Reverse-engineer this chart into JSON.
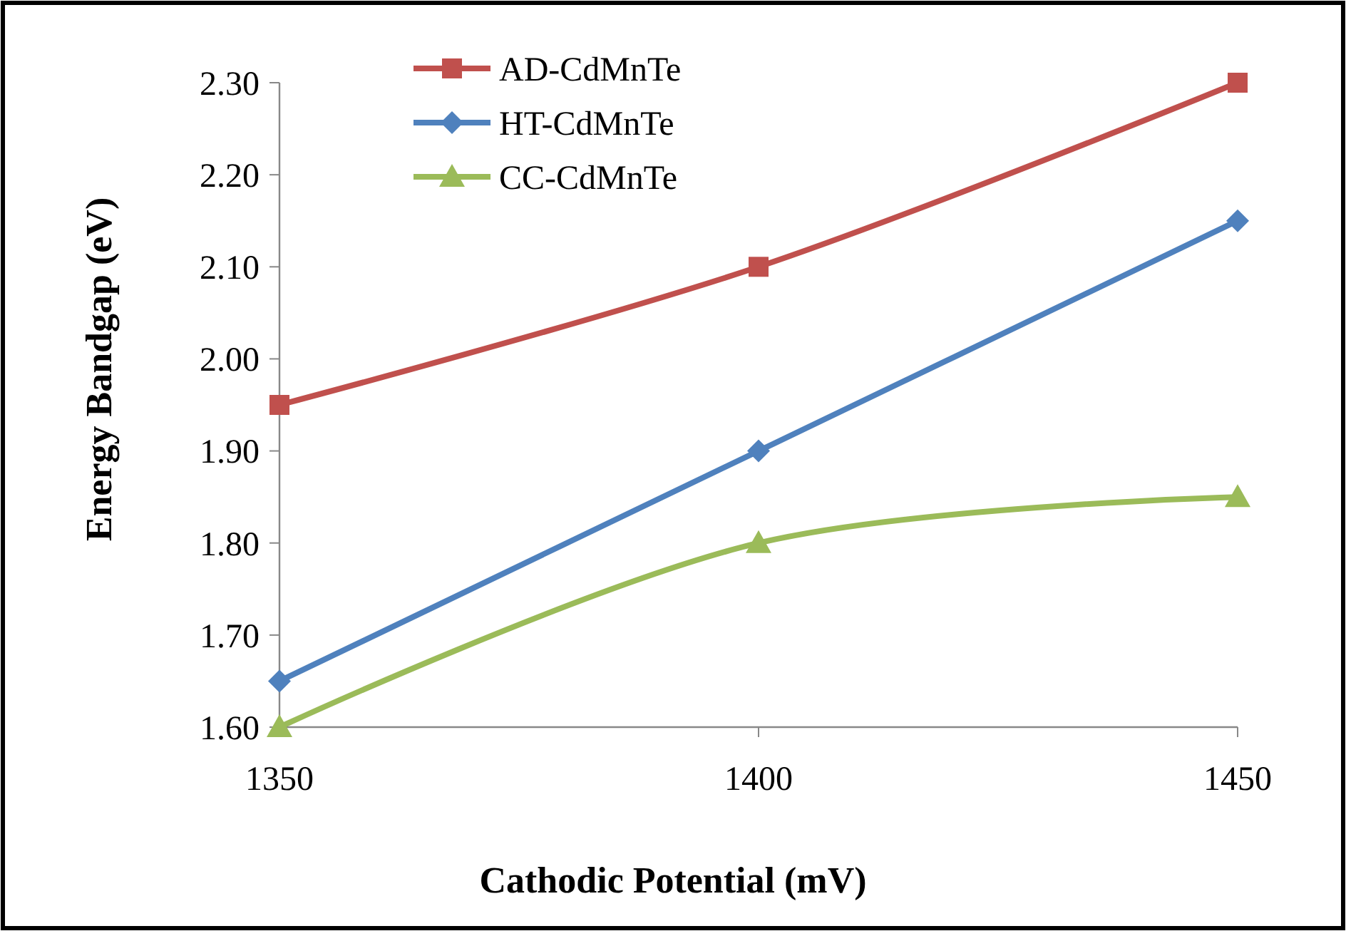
{
  "chart_data": {
    "type": "line",
    "xlabel": "Cathodic Potential (mV)",
    "ylabel": "Energy Bandgap (eV)",
    "x": [
      1350,
      1400,
      1450
    ],
    "xlim": [
      1350,
      1450
    ],
    "xticks": [
      1350,
      1400,
      1450
    ],
    "ylim": [
      1.6,
      2.3
    ],
    "yticks": [
      {
        "value": 1.6,
        "label": "1.60"
      },
      {
        "value": 1.7,
        "label": "1.70"
      },
      {
        "value": 1.8,
        "label": "1.80"
      },
      {
        "value": 1.9,
        "label": "1.90"
      },
      {
        "value": 2.0,
        "label": "2.00"
      },
      {
        "value": 2.1,
        "label": "2.10"
      },
      {
        "value": 2.2,
        "label": "2.20"
      },
      {
        "value": 2.3,
        "label": "2.30"
      }
    ],
    "grid": false,
    "legend": "top left",
    "line_style": "solid",
    "series": [
      {
        "name": "AD-CdMnTe",
        "color": "#c0504d",
        "marker": "square",
        "values": [
          1.95,
          2.1,
          2.3
        ]
      },
      {
        "name": "HT-CdMnTe",
        "color": "#4f81bd",
        "marker": "diamond",
        "values": [
          1.65,
          1.9,
          2.15
        ]
      },
      {
        "name": "CC-CdMnTe",
        "color": "#9bbb59",
        "marker": "triangle",
        "values": [
          1.6,
          1.8,
          1.85
        ]
      }
    ]
  }
}
